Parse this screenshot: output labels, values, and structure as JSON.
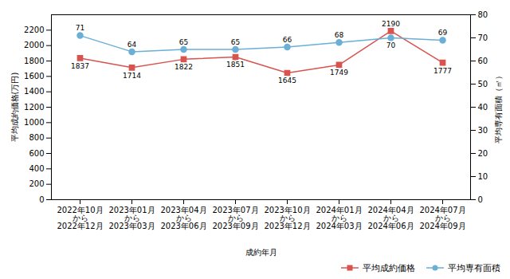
{
  "chart_data": {
    "type": "line",
    "xlabel": "成約年月",
    "ylabel": "平均成約価格(万円)",
    "y2label": "平均専有面積（㎡）",
    "categories": [
      "2022年10月\nから\n2022年12月",
      "2023年01月\nから\n2023年03月",
      "2023年04月\nから\n2023年06月",
      "2023年07月\nから\n2023年09月",
      "2023年10月\nから\n2023年12月",
      "2024年01月\nから\n2024年03月",
      "2024年04月\nから\n2024年06月",
      "2024年07月\nから\n2024年09月"
    ],
    "series": [
      {
        "name": "平均成約価格",
        "color": "#d9534f",
        "marker": "square",
        "values": [
          1837,
          1714,
          1822,
          1851,
          1645,
          1749,
          2190,
          1777
        ]
      },
      {
        "name": "平均専有面積",
        "color": "#6baed6",
        "marker": "circle",
        "axis": "y2",
        "values": [
          71,
          64,
          65,
          65,
          66,
          68,
          70,
          69
        ]
      }
    ],
    "ylim": [
      0,
      2400
    ],
    "yticks": [
      0,
      200,
      400,
      600,
      800,
      1000,
      1200,
      1400,
      1600,
      1800,
      2000,
      2200
    ],
    "y2lim": [
      0,
      80
    ],
    "y2ticks": [
      0,
      10,
      20,
      30,
      40,
      50,
      60,
      70,
      80
    ],
    "grid": false,
    "data_labels": true,
    "legend": "lower right"
  }
}
